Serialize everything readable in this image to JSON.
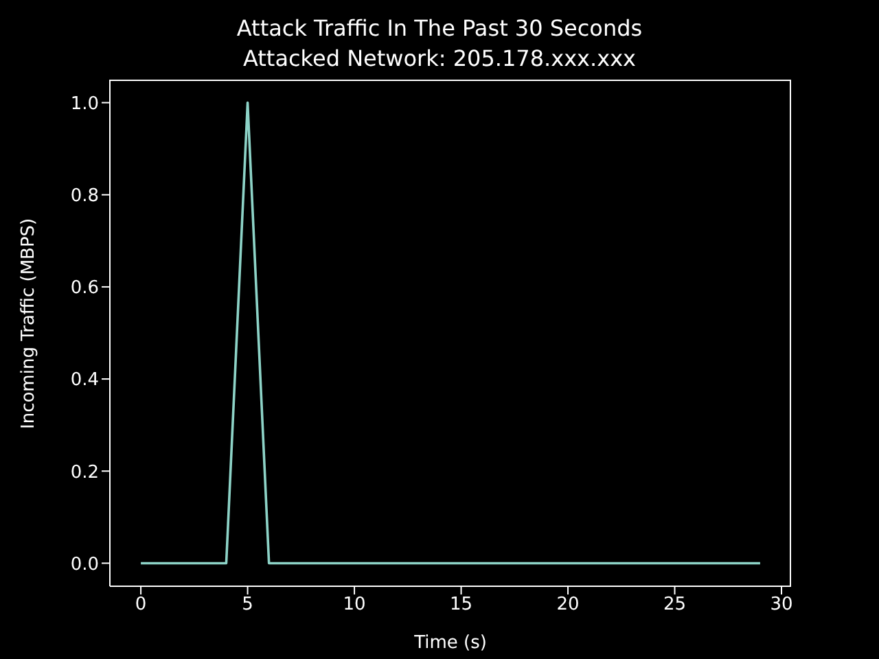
{
  "chart_data": {
    "type": "line",
    "title": "Attack Traffic In The Past 30 Seconds",
    "subtitle": "Attacked Network: 205.178.xxx.xxx",
    "xlabel": "Time (s)",
    "ylabel": "Incoming Traffic (MBPS)",
    "x": [
      0,
      1,
      2,
      3,
      4,
      5,
      6,
      7,
      8,
      9,
      10,
      11,
      12,
      13,
      14,
      15,
      16,
      17,
      18,
      19,
      20,
      21,
      22,
      23,
      24,
      25,
      26,
      27,
      28,
      29
    ],
    "series": [
      {
        "color": "#8dd3c7",
        "values": [
          0,
          0,
          0,
          0,
          0,
          1.0,
          0,
          0,
          0,
          0,
          0,
          0,
          0,
          0,
          0,
          0,
          0,
          0,
          0,
          0,
          0,
          0,
          0,
          0,
          0,
          0,
          0,
          0,
          0,
          0
        ]
      }
    ],
    "xlim": [
      -1.45,
      30.45
    ],
    "xticks": [
      0,
      5,
      10,
      15,
      20,
      25,
      30
    ],
    "ylim": [
      -0.05,
      1.05
    ],
    "yticks": [
      {
        "value": 0,
        "label": "0.0"
      },
      {
        "value": 0.2,
        "label": "0.2"
      },
      {
        "value": 0.4,
        "label": "0.4"
      },
      {
        "value": 0.6,
        "label": "0.6"
      },
      {
        "value": 0.8,
        "label": "0.8"
      },
      {
        "value": 1.0,
        "label": "1.0"
      }
    ],
    "grid": false,
    "legend": false,
    "marker": "none",
    "line_style": "solid"
  }
}
